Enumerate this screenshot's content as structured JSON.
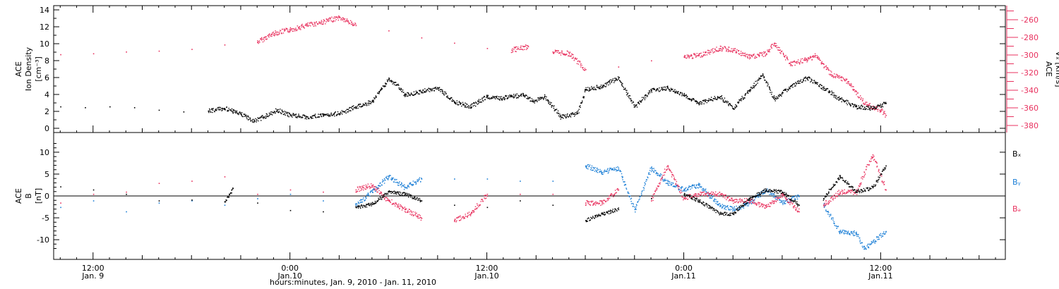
{
  "colors": {
    "black": "#000000",
    "red": "#e8325f",
    "blue": "#1c7fd6"
  },
  "chart_data": [
    {
      "type": "scatter",
      "panel": "top",
      "ylabel_lines": [
        "ACE",
        "Ion Density",
        "[cm⁻³]"
      ],
      "ylabel_right_lines": [
        "ACE",
        "Vₓ [km/s]"
      ],
      "yticks_left": [
        "0",
        "2",
        "4",
        "6",
        "8",
        "10",
        "12",
        "14"
      ],
      "ylim_left": [
        -0.5,
        14.5
      ],
      "yticks_right": [
        "-260",
        "-280",
        "-300",
        "-320",
        "-340",
        "-360",
        "-380"
      ],
      "ylim_right": [
        -388,
        -244
      ],
      "x_unit": "hours since Jan. 9 0:00",
      "series": [
        {
          "axis": "left",
          "color": "#000000",
          "points": [
            [
              10.0,
              2.6
            ],
            [
              11.5,
              2.5
            ],
            [
              13.0,
              2.6
            ],
            [
              14.5,
              2.5
            ],
            [
              16.0,
              2.2
            ],
            [
              17.5,
              2.0
            ],
            [
              19.0,
              2.1
            ],
            [
              20.0,
              2.4
            ],
            [
              21.0,
              1.7
            ],
            [
              21.8,
              0.9
            ],
            [
              22.5,
              1.5
            ],
            [
              23.2,
              2.2
            ],
            [
              24.0,
              1.6
            ],
            [
              25.0,
              1.4
            ],
            [
              26.0,
              1.6
            ],
            [
              27.0,
              1.8
            ],
            [
              28.0,
              2.6
            ],
            [
              29.0,
              3.2
            ],
            [
              29.5,
              4.6
            ],
            [
              30.0,
              5.8
            ],
            [
              30.5,
              5.2
            ],
            [
              31.0,
              4.0
            ],
            [
              32.0,
              4.4
            ],
            [
              33.0,
              4.8
            ],
            [
              34.0,
              3.2
            ],
            [
              35.0,
              2.6
            ],
            [
              36.0,
              3.8
            ],
            [
              36.8,
              3.6
            ],
            [
              37.5,
              3.8
            ],
            [
              38.2,
              4.0
            ],
            [
              38.8,
              3.2
            ],
            [
              39.5,
              3.8
            ],
            [
              40.5,
              1.4
            ],
            [
              41.5,
              1.8
            ],
            [
              42.0,
              4.6
            ],
            [
              43.0,
              5.0
            ],
            [
              44.0,
              6.0
            ],
            [
              45.0,
              2.6
            ],
            [
              46.0,
              4.5
            ],
            [
              47.0,
              4.8
            ],
            [
              48.0,
              4.0
            ],
            [
              48.9,
              3.0
            ],
            [
              50.2,
              3.8
            ],
            [
              51.0,
              2.4
            ],
            [
              52.0,
              4.6
            ],
            [
              52.8,
              6.3
            ],
            [
              53.5,
              3.5
            ],
            [
              54.5,
              5.0
            ],
            [
              55.5,
              6.0
            ],
            [
              56.5,
              4.8
            ],
            [
              57.5,
              3.5
            ],
            [
              58.5,
              2.6
            ],
            [
              59.5,
              2.4
            ],
            [
              60.3,
              3.0
            ]
          ]
        },
        {
          "axis": "right",
          "color": "#e8325f",
          "points": [
            [
              10.0,
              -299
            ],
            [
              12.0,
              -298
            ],
            [
              14.0,
              -296
            ],
            [
              16.0,
              -295
            ],
            [
              18.0,
              -293
            ],
            [
              20.0,
              -288
            ],
            [
              22.0,
              -285
            ],
            [
              23.0,
              -275
            ],
            [
              24.0,
              -271
            ],
            [
              25.0,
              -266
            ],
            [
              26.0,
              -262
            ],
            [
              27.0,
              -257
            ],
            [
              28.0,
              -266
            ],
            [
              30.0,
              -272
            ],
            [
              32.0,
              -280
            ],
            [
              34.0,
              -286
            ],
            [
              36.0,
              -292
            ],
            [
              37.5,
              -294
            ],
            [
              38.5,
              -290
            ],
            [
              40.0,
              -296
            ],
            [
              41.0,
              -298
            ],
            [
              42.0,
              -316
            ],
            [
              44.0,
              -313
            ],
            [
              46.0,
              -306
            ],
            [
              48.0,
              -302
            ],
            [
              48.9,
              -300
            ],
            [
              50.2,
              -292
            ],
            [
              51.0,
              -294
            ],
            [
              52.0,
              -302
            ],
            [
              53.0,
              -298
            ],
            [
              53.5,
              -286
            ],
            [
              54.5,
              -310
            ],
            [
              55.5,
              -305
            ],
            [
              56.0,
              -300
            ],
            [
              57.0,
              -322
            ],
            [
              58.0,
              -330
            ],
            [
              59.0,
              -355
            ],
            [
              60.0,
              -362
            ],
            [
              60.3,
              -368
            ]
          ]
        }
      ]
    },
    {
      "type": "scatter",
      "panel": "bottom",
      "ylabel_lines": [
        "ACE",
        "B",
        "[nT]"
      ],
      "yticks_left": [
        "-10",
        "-5",
        "0",
        "5",
        "10"
      ],
      "ylim_left": [
        -14.5,
        14.5
      ],
      "legend": [
        "Bₓ",
        "Bᵧ",
        "Bₔ"
      ],
      "series": [
        {
          "name": "Bₓ",
          "color": "#000000",
          "points": [
            [
              10.0,
              2.2
            ],
            [
              12.0,
              1.5
            ],
            [
              14.0,
              0.5
            ],
            [
              16.0,
              -1.0
            ],
            [
              18.0,
              -0.8
            ],
            [
              20.0,
              -1.2
            ],
            [
              20.5,
              1.8
            ],
            [
              22.0,
              -1.5
            ],
            [
              24.0,
              -3.2
            ],
            [
              26.0,
              -3.5
            ],
            [
              28.0,
              -2.5
            ],
            [
              29.0,
              -1.8
            ],
            [
              30.0,
              1.0
            ],
            [
              31.0,
              0.5
            ],
            [
              32.0,
              -1.0
            ],
            [
              34.0,
              -2.0
            ],
            [
              36.0,
              -2.5
            ],
            [
              38.0,
              -1.0
            ],
            [
              40.0,
              -2.0
            ],
            [
              42.0,
              -5.5
            ],
            [
              43.0,
              -4.0
            ],
            [
              44.0,
              -3.0
            ],
            [
              46.0,
              -0.5
            ],
            [
              48.0,
              0.5
            ],
            [
              48.9,
              -1.0
            ],
            [
              50.2,
              -4.0
            ],
            [
              51.0,
              -4.0
            ],
            [
              52.0,
              -0.5
            ],
            [
              53.0,
              1.5
            ],
            [
              54.0,
              1.0
            ],
            [
              55.0,
              -2.0
            ],
            [
              56.5,
              -0.5
            ],
            [
              57.5,
              4.5
            ],
            [
              58.5,
              1.0
            ],
            [
              59.5,
              2.0
            ],
            [
              60.3,
              7.0
            ]
          ]
        },
        {
          "name": "Bᵧ",
          "color": "#1c7fd6",
          "points": [
            [
              10.0,
              -2.5
            ],
            [
              12.0,
              -1.0
            ],
            [
              14.0,
              -3.5
            ],
            [
              16.0,
              -1.5
            ],
            [
              18.0,
              -1.0
            ],
            [
              20.0,
              -2.0
            ],
            [
              22.0,
              -0.5
            ],
            [
              24.0,
              0.5
            ],
            [
              26.0,
              -1.0
            ],
            [
              28.0,
              -2.0
            ],
            [
              29.0,
              1.0
            ],
            [
              30.0,
              4.5
            ],
            [
              31.0,
              2.0
            ],
            [
              32.0,
              4.0
            ],
            [
              34.0,
              4.0
            ],
            [
              36.0,
              4.0
            ],
            [
              38.0,
              3.5
            ],
            [
              40.0,
              3.5
            ],
            [
              42.0,
              7.0
            ],
            [
              43.0,
              5.5
            ],
            [
              44.0,
              6.5
            ],
            [
              45.0,
              -3.0
            ],
            [
              46.0,
              6.5
            ],
            [
              47.0,
              3.0
            ],
            [
              48.0,
              1.5
            ],
            [
              48.9,
              2.5
            ],
            [
              50.2,
              -2.0
            ],
            [
              51.0,
              -3.0
            ],
            [
              52.0,
              -1.5
            ],
            [
              53.0,
              1.5
            ],
            [
              54.0,
              -1.5
            ],
            [
              55.0,
              0.0
            ],
            [
              56.5,
              -2.0
            ],
            [
              57.5,
              -8.0
            ],
            [
              58.5,
              -8.5
            ],
            [
              59.0,
              -12.0
            ],
            [
              60.3,
              -8.0
            ]
          ]
        },
        {
          "name": "Bₔ",
          "color": "#e8325f",
          "points": [
            [
              10.0,
              -1.5
            ],
            [
              12.0,
              0.5
            ],
            [
              14.0,
              1.0
            ],
            [
              16.0,
              3.0
            ],
            [
              18.0,
              3.5
            ],
            [
              20.0,
              4.5
            ],
            [
              22.0,
              0.5
            ],
            [
              24.0,
              1.5
            ],
            [
              26.0,
              1.0
            ],
            [
              28.0,
              1.5
            ],
            [
              29.0,
              2.5
            ],
            [
              30.0,
              -1.0
            ],
            [
              31.0,
              -3.0
            ],
            [
              32.0,
              -5.0
            ],
            [
              34.0,
              -5.5
            ],
            [
              35.0,
              -4.0
            ],
            [
              36.0,
              0.5
            ],
            [
              38.0,
              0.5
            ],
            [
              40.0,
              0.5
            ],
            [
              42.0,
              -1.5
            ],
            [
              43.0,
              -1.5
            ],
            [
              44.0,
              1.5
            ],
            [
              46.0,
              -1.0
            ],
            [
              47.0,
              7.0
            ],
            [
              48.0,
              -0.5
            ],
            [
              48.9,
              0.5
            ],
            [
              50.2,
              0.5
            ],
            [
              51.0,
              -1.0
            ],
            [
              52.0,
              -1.0
            ],
            [
              53.0,
              -2.5
            ],
            [
              54.0,
              0.5
            ],
            [
              55.0,
              -3.5
            ],
            [
              56.5,
              -2.0
            ],
            [
              57.5,
              1.0
            ],
            [
              58.5,
              1.0
            ],
            [
              59.5,
              9.5
            ],
            [
              60.3,
              1.5
            ]
          ]
        }
      ]
    }
  ],
  "x_axis": {
    "xlim": [
      9.6,
      67.6
    ],
    "tick_labels": [
      {
        "x": 12,
        "time": "12:00",
        "day": "Jan. 9"
      },
      {
        "x": 24,
        "time": "0:00",
        "day": "Jan.10"
      },
      {
        "x": 36,
        "time": "12:00",
        "day": "Jan.10"
      },
      {
        "x": 48,
        "time": "0:00",
        "day": "Jan.11"
      },
      {
        "x": 60,
        "time": "12:00",
        "day": "Jan.11"
      }
    ],
    "xlabel": "hours:minutes, Jan.  9, 2010 - Jan. 11, 2010"
  }
}
